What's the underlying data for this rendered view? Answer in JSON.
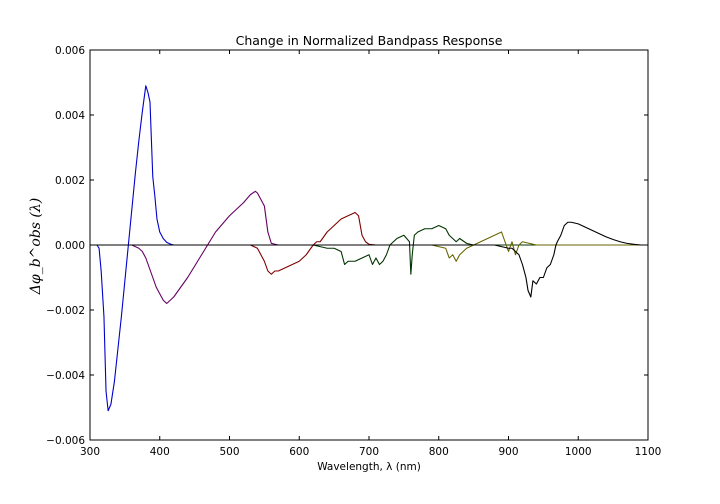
{
  "chart_data": {
    "type": "line",
    "title": "Change in Normalized Bandpass Response",
    "xlabel": "Wavelength, λ (nm)",
    "ylabel": "Δφ_b^obs (λ)",
    "xlim": [
      300,
      1100
    ],
    "ylim": [
      -0.006,
      0.006
    ],
    "xticks": [
      300,
      400,
      500,
      600,
      700,
      800,
      900,
      1000,
      1100
    ],
    "yticks": [
      -0.006,
      -0.004,
      -0.002,
      0.0,
      0.002,
      0.004,
      0.006
    ],
    "xtick_labels": [
      "300",
      "400",
      "500",
      "600",
      "700",
      "800",
      "900",
      "1000",
      "1100"
    ],
    "ytick_labels": [
      "−0.006",
      "−0.004",
      "−0.002",
      "0.000",
      "0.002",
      "0.004",
      "0.006"
    ],
    "grid": false,
    "series": [
      {
        "color": "#0000cc",
        "x": [
          300,
          310,
          313,
          316,
          320,
          323,
          326,
          330,
          335,
          340,
          345,
          350,
          355,
          360,
          365,
          370,
          375,
          380,
          383,
          386,
          390,
          393,
          396,
          400,
          405,
          410,
          415,
          420,
          430,
          450,
          1100
        ],
        "y": [
          0,
          0,
          -0.0001,
          -0.0008,
          -0.0022,
          -0.0045,
          -0.0051,
          -0.0049,
          -0.0042,
          -0.0032,
          -0.0022,
          -0.0011,
          0.0,
          0.0011,
          0.0022,
          0.0032,
          0.0041,
          0.0049,
          0.0047,
          0.0044,
          0.0021,
          0.0015,
          0.0008,
          0.0004,
          0.0002,
          8e-05,
          3e-05,
          0.0,
          0,
          0,
          0
        ]
      },
      {
        "color": "#660066",
        "x": [
          300,
          360,
          370,
          375,
          380,
          385,
          390,
          395,
          400,
          405,
          410,
          415,
          420,
          440,
          460,
          480,
          500,
          510,
          520,
          530,
          537,
          540,
          545,
          550,
          555,
          560,
          570,
          1100
        ],
        "y": [
          0,
          0,
          -0.0001,
          -0.0002,
          -0.0004,
          -0.0007,
          -0.001,
          -0.0013,
          -0.0015,
          -0.0017,
          -0.0018,
          -0.0017,
          -0.0016,
          -0.001,
          -0.0003,
          0.0004,
          0.0009,
          0.0011,
          0.0013,
          0.00155,
          0.00165,
          0.0016,
          0.0014,
          0.0012,
          0.0004,
          5e-05,
          0,
          0
        ]
      },
      {
        "color": "#800000",
        "x": [
          300,
          530,
          540,
          550,
          555,
          560,
          565,
          570,
          580,
          590,
          600,
          610,
          620,
          625,
          630,
          640,
          650,
          660,
          670,
          680,
          685,
          690,
          695,
          700,
          710,
          1100
        ],
        "y": [
          0,
          0,
          -0.0001,
          -0.0005,
          -0.0008,
          -0.0009,
          -0.0008,
          -0.0008,
          -0.0007,
          -0.0006,
          -0.0005,
          -0.0003,
          0.0,
          0.0001,
          0.0001,
          0.0004,
          0.0006,
          0.0008,
          0.0009,
          0.001,
          0.0009,
          0.0003,
          0.0001,
          2e-05,
          0,
          0
        ]
      },
      {
        "color": "#003300",
        "x": [
          300,
          620,
          630,
          640,
          650,
          660,
          665,
          670,
          680,
          690,
          700,
          705,
          710,
          715,
          720,
          725,
          730,
          740,
          750,
          758,
          760,
          762,
          765,
          770,
          780,
          790,
          800,
          810,
          815,
          820,
          825,
          830,
          840,
          850,
          1100
        ],
        "y": [
          0,
          0,
          -5e-05,
          -0.0001,
          -0.0001,
          -0.0002,
          -0.0006,
          -0.0005,
          -0.0005,
          -0.0004,
          -0.0003,
          -0.0006,
          -0.0004,
          -0.0006,
          -0.0005,
          -0.0003,
          0.0,
          0.0002,
          0.0003,
          0.0001,
          -0.0009,
          -0.0003,
          0.0003,
          0.0004,
          0.0005,
          0.0005,
          0.0006,
          0.0005,
          0.0003,
          0.0002,
          0.0001,
          0.0002,
          5e-05,
          0,
          0
        ]
      },
      {
        "color": "#666600",
        "x": [
          300,
          760,
          790,
          800,
          810,
          815,
          820,
          825,
          830,
          840,
          850,
          860,
          870,
          880,
          890,
          895,
          900,
          905,
          910,
          915,
          920,
          930,
          940,
          1100
        ],
        "y": [
          0,
          0,
          0,
          -5e-05,
          -0.0001,
          -0.0004,
          -0.0003,
          -0.0005,
          -0.0003,
          -0.0001,
          0.0,
          0.0001,
          0.0002,
          0.0003,
          0.0004,
          0.0001,
          -0.0002,
          0.0001,
          -0.0003,
          0.0,
          0.0001,
          5e-05,
          0,
          0
        ]
      },
      {
        "color": "#000000",
        "x": [
          300,
          880,
          890,
          900,
          905,
          910,
          915,
          920,
          925,
          928,
          932,
          935,
          940,
          945,
          950,
          955,
          960,
          965,
          968,
          970,
          975,
          980,
          985,
          990,
          1000,
          1010,
          1020,
          1030,
          1040,
          1050,
          1060,
          1070,
          1080,
          1090,
          1100
        ],
        "y": [
          0,
          0,
          -5e-05,
          -0.0001,
          -0.0001,
          -0.0002,
          -0.0003,
          -0.0006,
          -0.001,
          -0.0014,
          -0.0016,
          -0.0011,
          -0.0012,
          -0.001,
          -0.001,
          -0.0007,
          -0.0006,
          -0.0003,
          0.0,
          0.0001,
          0.0003,
          0.0006,
          0.0007,
          0.0007,
          0.00065,
          0.00055,
          0.00045,
          0.00035,
          0.00025,
          0.00017,
          0.0001,
          5e-05,
          2e-05,
          0.0,
          0.0
        ]
      }
    ]
  }
}
